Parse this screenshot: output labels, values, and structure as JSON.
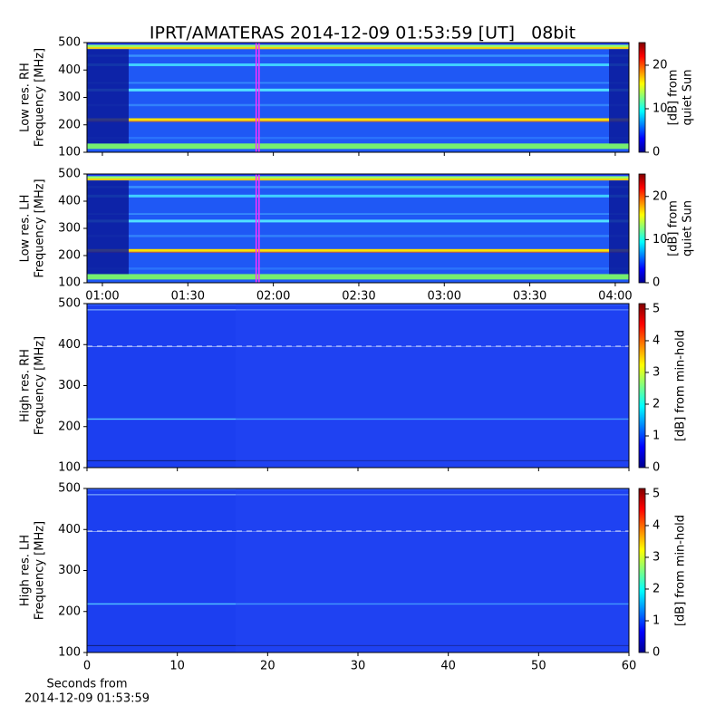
{
  "title": "IPRT/AMATERAS 2014-12-09 01:53:59 [UT]   08bit",
  "chart_data": [
    {
      "type": "spectrogram",
      "ylabel": [
        "Low res. RH",
        "Frequency [MHz]"
      ],
      "ylim": [
        100,
        500
      ],
      "yticks": [
        100,
        200,
        300,
        400,
        500
      ],
      "xlim": [
        54.6,
        244.8
      ],
      "highlight_x": [
        113.98,
        114.98
      ],
      "colorbar": {
        "label": [
          "[dB] from",
          "quiet Sun"
        ],
        "lim": [
          0,
          25.2
        ],
        "ticks": [
          0,
          10,
          20
        ]
      }
    },
    {
      "type": "spectrogram",
      "ylabel": [
        "Low res. LH",
        "Frequency [MHz]"
      ],
      "ylim": [
        100,
        500
      ],
      "yticks": [
        100,
        200,
        300,
        400,
        500
      ],
      "xlim": [
        54.6,
        244.8
      ],
      "highlight_x": [
        113.98,
        114.98
      ],
      "xticks": [
        {
          "value": 60,
          "label": "01:00"
        },
        {
          "value": 90,
          "label": "01:30"
        },
        {
          "value": 120,
          "label": "02:00"
        },
        {
          "value": 150,
          "label": "02:30"
        },
        {
          "value": 180,
          "label": "03:00"
        },
        {
          "value": 210,
          "label": "03:30"
        },
        {
          "value": 240,
          "label": "04:00"
        }
      ],
      "colorbar": {
        "label": [
          "[dB] from",
          "quiet Sun"
        ],
        "lim": [
          0,
          25.2
        ],
        "ticks": [
          0,
          10,
          20
        ]
      }
    },
    {
      "type": "spectrogram",
      "ylabel": [
        "High res. RH",
        "Frequency [MHz]"
      ],
      "ylim": [
        100,
        500
      ],
      "yticks": [
        100,
        200,
        300,
        400,
        500
      ],
      "xlim": [
        0,
        60
      ],
      "colorbar": {
        "label": [
          "[dB] from min-hold"
        ],
        "lim": [
          0,
          5.17
        ],
        "ticks": [
          0,
          1,
          2,
          3,
          4,
          5
        ]
      }
    },
    {
      "type": "spectrogram",
      "ylabel": [
        "High res. LH",
        "Frequency [MHz]"
      ],
      "ylim": [
        100,
        500
      ],
      "yticks": [
        100,
        200,
        300,
        400,
        500
      ],
      "xlim": [
        0,
        60
      ],
      "xticks": [
        0,
        10,
        20,
        30,
        40,
        50,
        60
      ],
      "xlabel": [
        "Seconds from",
        "2014-12-09 01:53:59"
      ],
      "colorbar": {
        "label": [
          "[dB] from min-hold"
        ],
        "lim": [
          0,
          5.17
        ],
        "ticks": [
          0,
          1,
          2,
          3,
          4,
          5
        ]
      }
    }
  ]
}
